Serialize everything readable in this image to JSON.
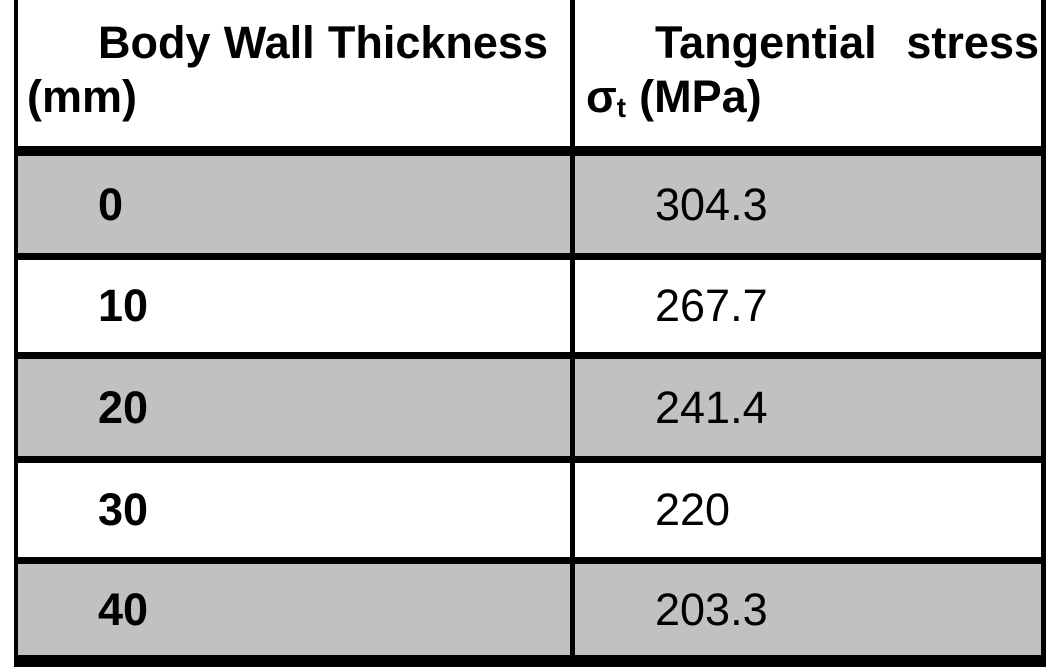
{
  "table": {
    "header": {
      "col1_line1": "Body Wall Thickness",
      "col1_line2": "(mm)",
      "col2_line1": "Tangential stress",
      "col2_sigma": "σ",
      "col2_sigma_sub": "t",
      "col2_unit": "(MPa)"
    },
    "rows": [
      {
        "thickness": "0",
        "stress": "304.3"
      },
      {
        "thickness": "10",
        "stress": "267.7"
      },
      {
        "thickness": "20",
        "stress": "241.4"
      },
      {
        "thickness": "30",
        "stress": "220"
      },
      {
        "thickness": "40",
        "stress": "203.3"
      }
    ]
  },
  "colors": {
    "row_shade": "#c1c1c1",
    "border": "#000000",
    "background": "#ffffff",
    "text": "#000000"
  },
  "chart_data": {
    "type": "table",
    "columns": [
      "Body Wall Thickness (mm)",
      "Tangential stress σt (MPa)"
    ],
    "rows": [
      [
        0,
        304.3
      ],
      [
        10,
        267.7
      ],
      [
        20,
        241.4
      ],
      [
        30,
        220
      ],
      [
        40,
        203.3
      ]
    ]
  }
}
